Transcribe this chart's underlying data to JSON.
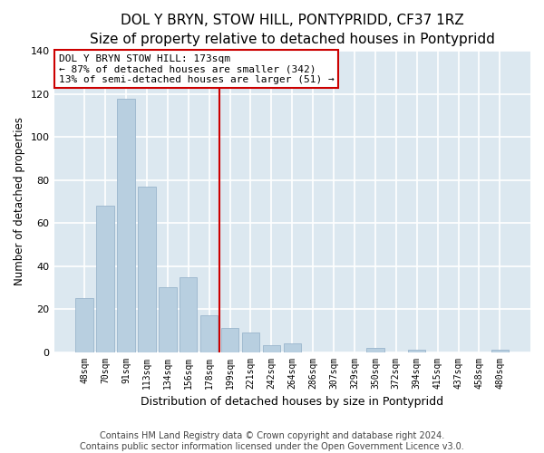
{
  "title": "DOL Y BRYN, STOW HILL, PONTYPRIDD, CF37 1RZ",
  "subtitle": "Size of property relative to detached houses in Pontypridd",
  "xlabel": "Distribution of detached houses by size in Pontypridd",
  "ylabel": "Number of detached properties",
  "bar_labels": [
    "48sqm",
    "70sqm",
    "91sqm",
    "113sqm",
    "134sqm",
    "156sqm",
    "178sqm",
    "199sqm",
    "221sqm",
    "242sqm",
    "264sqm",
    "286sqm",
    "307sqm",
    "329sqm",
    "350sqm",
    "372sqm",
    "394sqm",
    "415sqm",
    "437sqm",
    "458sqm",
    "480sqm"
  ],
  "bar_values": [
    25,
    68,
    118,
    77,
    30,
    35,
    17,
    11,
    9,
    3,
    4,
    0,
    0,
    0,
    2,
    0,
    1,
    0,
    0,
    0,
    1
  ],
  "bar_color": "#b8cfe0",
  "bar_edge_color": "#9ab5cc",
  "vline_color": "#cc0000",
  "annotation_text": "DOL Y BRYN STOW HILL: 173sqm\n← 87% of detached houses are smaller (342)\n13% of semi-detached houses are larger (51) →",
  "annotation_box_color": "white",
  "annotation_box_edge": "#cc0000",
  "ylim": [
    0,
    140
  ],
  "yticks": [
    0,
    20,
    40,
    60,
    80,
    100,
    120,
    140
  ],
  "footer": "Contains HM Land Registry data © Crown copyright and database right 2024.\nContains public sector information licensed under the Open Government Licence v3.0.",
  "fig_background": "#ffffff",
  "plot_background": "#dce8f0",
  "grid_color": "#ffffff",
  "title_fontsize": 11,
  "annotation_fontsize": 8,
  "footer_fontsize": 7,
  "xlabel_fontsize": 9,
  "ylabel_fontsize": 8.5,
  "tick_fontsize": 8,
  "xtick_fontsize": 7
}
